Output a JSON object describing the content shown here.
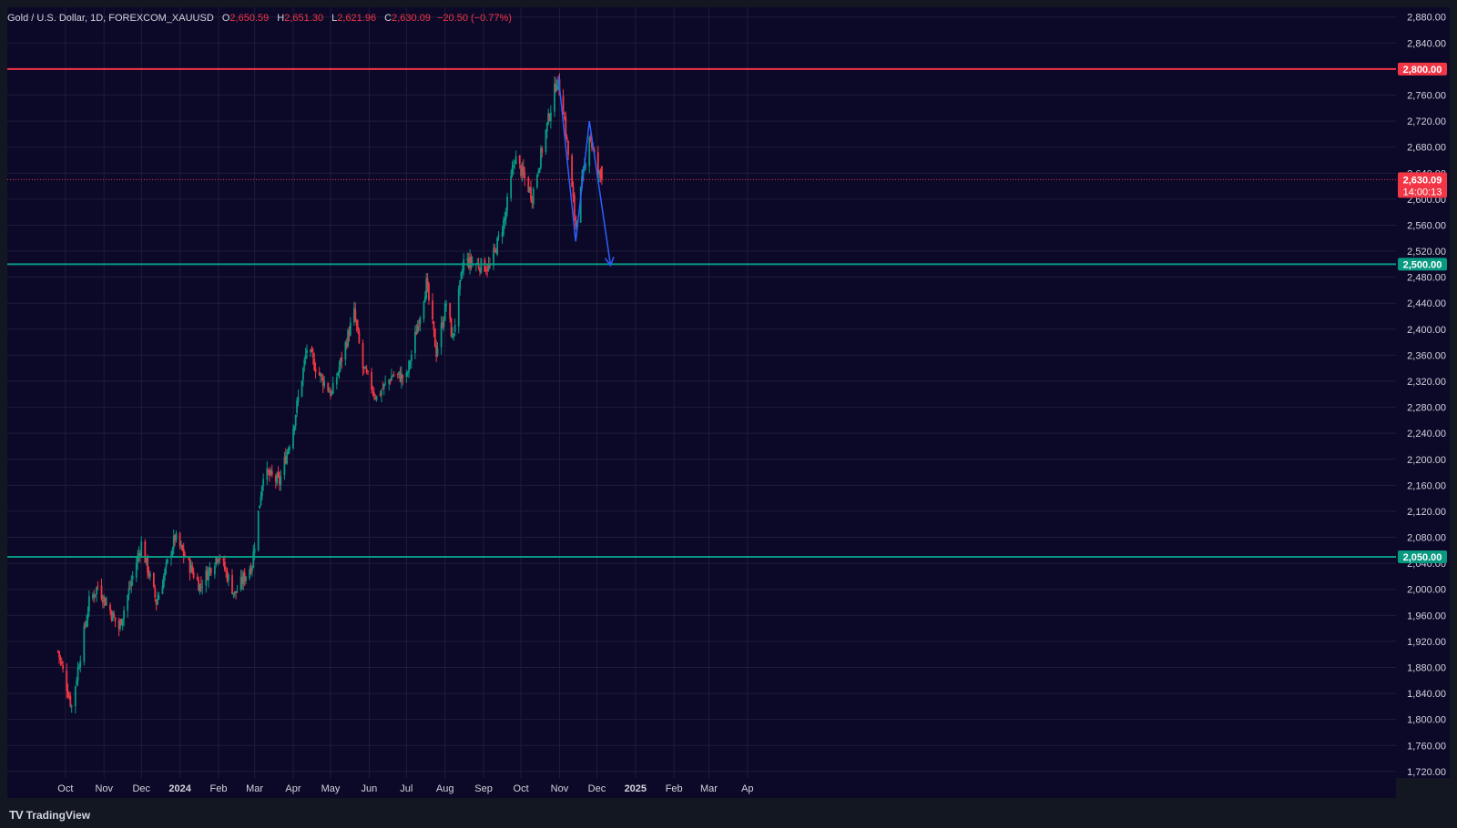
{
  "header": {
    "symbol": "Gold / U.S. Dollar, 1D, FOREXCOM_XAUUSD",
    "open_label": "O",
    "open": "2,650.59",
    "high_label": "H",
    "high": "2,651.30",
    "low_label": "L",
    "low": "2,621.96",
    "close_label": "C",
    "close": "2,630.09",
    "change": "−20.50 (−0.77%)"
  },
  "footer": {
    "brand": "TradingView",
    "logo_icon": "tradingview-logo-icon"
  },
  "colors": {
    "background": "#0c0828",
    "grid": "#1f1d3a",
    "up": "#089981",
    "down": "#f23645",
    "resistance": "#f23645",
    "support": "#089981",
    "trendline": "#2962ff",
    "current": "#f23645"
  },
  "chart_data": {
    "type": "candlestick",
    "x_labels": [
      "Oct",
      "Nov",
      "Dec",
      "2024",
      "Feb",
      "Mar",
      "Apr",
      "May",
      "Jun",
      "Jul",
      "Aug",
      "Sep",
      "Oct",
      "Nov",
      "Dec",
      "2025",
      "Feb",
      "Mar",
      "Ap"
    ],
    "y_ticks": [
      "2,880.00",
      "2,840.00",
      "2,800.00",
      "2,760.00",
      "2,720.00",
      "2,680.00",
      "2,640.00",
      "2,600.00",
      "2,560.00",
      "2,520.00",
      "2,480.00",
      "2,440.00",
      "2,400.00",
      "2,360.00",
      "2,320.00",
      "2,280.00",
      "2,240.00",
      "2,200.00",
      "2,160.00",
      "2,120.00",
      "2,080.00",
      "2,040.00",
      "2,000.00",
      "1,960.00",
      "1,920.00",
      "1,880.00",
      "1,840.00",
      "1,800.00",
      "1,760.00",
      "1,720.00"
    ],
    "ylim": [
      1710,
      2895
    ],
    "current_price": {
      "label": "2,630.09",
      "countdown": "14:00:13"
    },
    "levels": [
      {
        "name": "resistance",
        "label": "2,800.00",
        "value": 2800,
        "color": "#f23645"
      },
      {
        "name": "support-upper",
        "label": "2,500.00",
        "value": 2500,
        "color": "#089981"
      },
      {
        "name": "support-lower",
        "label": "2,050.00",
        "value": 2050,
        "color": "#089981"
      }
    ],
    "anchors": [
      [
        "2023-09-25",
        1905
      ],
      [
        "2023-10-06",
        1820
      ],
      [
        "2023-10-20",
        1980
      ],
      [
        "2023-10-27",
        2005
      ],
      [
        "2023-11-13",
        1940
      ],
      [
        "2023-12-01",
        2070
      ],
      [
        "2023-12-13",
        1980
      ],
      [
        "2023-12-28",
        2080
      ],
      [
        "2024-01-17",
        2005
      ],
      [
        "2024-02-01",
        2055
      ],
      [
        "2024-02-14",
        1992
      ],
      [
        "2024-02-28",
        2040
      ],
      [
        "2024-03-08",
        2180
      ],
      [
        "2024-03-21",
        2165
      ],
      [
        "2024-04-01",
        2250
      ],
      [
        "2024-04-12",
        2370
      ],
      [
        "2024-04-22",
        2330
      ],
      [
        "2024-05-02",
        2300
      ],
      [
        "2024-05-20",
        2425
      ],
      [
        "2024-05-27",
        2340
      ],
      [
        "2024-06-07",
        2295
      ],
      [
        "2024-06-20",
        2330
      ],
      [
        "2024-07-01",
        2325
      ],
      [
        "2024-07-17",
        2470
      ],
      [
        "2024-07-25",
        2365
      ],
      [
        "2024-08-02",
        2440
      ],
      [
        "2024-08-07",
        2385
      ],
      [
        "2024-08-16",
        2505
      ],
      [
        "2024-09-06",
        2495
      ],
      [
        "2024-09-18",
        2570
      ],
      [
        "2024-09-26",
        2665
      ],
      [
        "2024-10-10",
        2605
      ],
      [
        "2024-10-30",
        2785
      ],
      [
        "2024-11-04",
        2740
      ],
      [
        "2024-11-14",
        2560
      ],
      [
        "2024-11-25",
        2700
      ],
      [
        "2024-12-02",
        2640
      ],
      [
        "2024-12-05",
        2630
      ]
    ],
    "projection": [
      [
        "2024-10-31",
        2790
      ],
      [
        "2024-11-14",
        2535
      ],
      [
        "2024-11-25",
        2720
      ],
      [
        "2024-12-12",
        2498
      ]
    ]
  }
}
